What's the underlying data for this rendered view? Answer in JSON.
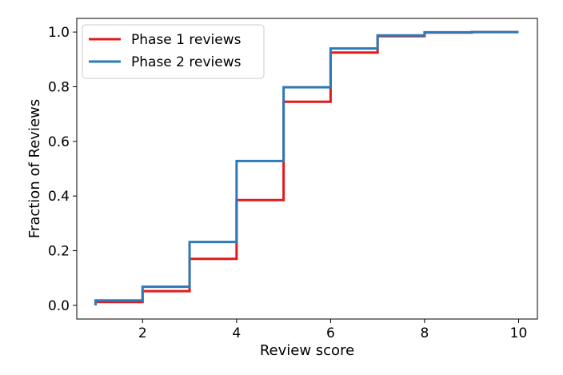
{
  "chart_data": {
    "type": "line",
    "xlabel": "Review score",
    "ylabel": "Fraction of Reviews",
    "xlim": [
      0.6,
      10.4
    ],
    "ylim": [
      -0.05,
      1.05
    ],
    "xticks": [
      2,
      4,
      6,
      8,
      10
    ],
    "yticks": [
      0.0,
      0.2,
      0.4,
      0.6,
      0.8,
      1.0
    ],
    "xtick_labels": [
      "2",
      "4",
      "6",
      "8",
      "10"
    ],
    "ytick_labels": [
      "0.0",
      "0.2",
      "0.4",
      "0.6",
      "0.8",
      "1.0"
    ],
    "legend_position": "top-left",
    "grid": false,
    "series": [
      {
        "name": "Phase 1 reviews",
        "color": "#e31a1c",
        "style": "step",
        "x": [
          1,
          2,
          3,
          4,
          5,
          6,
          7,
          8,
          9,
          10
        ],
        "y": [
          0.012,
          0.052,
          0.17,
          0.385,
          0.745,
          0.925,
          0.985,
          0.998,
          1.0,
          1.0
        ]
      },
      {
        "name": "Phase 2 reviews",
        "color": "#2e7ab8",
        "style": "step",
        "x": [
          1,
          2,
          3,
          4,
          5,
          6,
          7,
          8,
          9,
          10
        ],
        "y": [
          0.018,
          0.068,
          0.232,
          0.528,
          0.798,
          0.94,
          0.988,
          0.999,
          1.0,
          1.0
        ]
      }
    ]
  }
}
